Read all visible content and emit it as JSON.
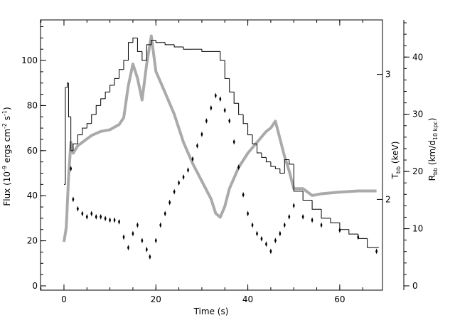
{
  "chart_data": {
    "type": "line",
    "xlabel": "Time (s)",
    "ylabel": [
      "Flux (10",
      "-9",
      " ergs cm",
      "-2",
      " s",
      "-1",
      ")"
    ],
    "y2label": [
      "T",
      "bb",
      " (keV)"
    ],
    "y3label": [
      "R",
      "bb",
      " (km/d",
      "10 kpc",
      ")"
    ],
    "xlim": [
      -5.1,
      69.3
    ],
    "xticks": [
      0,
      20,
      40,
      60
    ],
    "xminor_step": 5,
    "ylim": [
      -1.9,
      118
    ],
    "yticks": [
      0,
      20,
      40,
      60,
      80,
      100
    ],
    "yminor_step": 5,
    "y2lim": [
      1.49,
      3.58
    ],
    "y2ticks": [
      2,
      3
    ],
    "y2log": true,
    "y3lim": [
      -0.75,
      46.5
    ],
    "y3ticks": [
      0,
      10,
      20,
      30,
      40
    ],
    "y3minor_step": 2,
    "series": [
      {
        "name": "Flux",
        "type": "step",
        "color": "#000000",
        "bins": [
          0,
          0.3,
          0.7,
          1,
          1.5,
          2,
          3,
          4,
          5,
          6,
          7,
          8,
          9,
          10,
          11,
          12,
          13,
          14,
          15,
          16,
          17,
          18,
          19,
          20,
          22,
          24,
          26,
          28,
          30,
          32,
          34,
          35,
          36,
          37,
          38,
          39,
          40,
          41,
          42,
          43,
          44,
          45,
          46,
          47,
          48,
          49,
          50,
          52,
          54,
          56,
          58,
          60,
          62,
          64,
          66,
          68.5
        ],
        "values": [
          45,
          88,
          90,
          75,
          60,
          63,
          67,
          70,
          72,
          76,
          80,
          83,
          86,
          89,
          92,
          96,
          100,
          108,
          110,
          104,
          100,
          107,
          109,
          108,
          107,
          106,
          105,
          105,
          104,
          104,
          100,
          92,
          86,
          81,
          76,
          72,
          67,
          63,
          59,
          57,
          55,
          53,
          52,
          50,
          56,
          54,
          42,
          38,
          34,
          30,
          28,
          25,
          23,
          21,
          17
        ]
      },
      {
        "name": "Tbb",
        "type": "scatter",
        "axis": "y2",
        "color": "#000000",
        "x": [
          1.5,
          2,
          3,
          4,
          5,
          6,
          7,
          8,
          9,
          10,
          11,
          12,
          13,
          14,
          15,
          16,
          17,
          18,
          18.7,
          20,
          21,
          22,
          23,
          24,
          25,
          26,
          27,
          28,
          29,
          30,
          31,
          32,
          33,
          34,
          35,
          36,
          37,
          38,
          39,
          40,
          41,
          42,
          43,
          44,
          45,
          46,
          47,
          48,
          49,
          50,
          52,
          54,
          56,
          60,
          64,
          68
        ],
        "values": [
          2.21,
          2.0,
          1.94,
          1.91,
          1.89,
          1.91,
          1.89,
          1.89,
          1.88,
          1.87,
          1.87,
          1.86,
          1.77,
          1.71,
          1.79,
          1.84,
          1.75,
          1.7,
          1.66,
          1.75,
          1.84,
          1.91,
          1.98,
          2.05,
          2.11,
          2.15,
          2.2,
          2.28,
          2.38,
          2.47,
          2.58,
          2.69,
          2.8,
          2.77,
          2.67,
          2.58,
          2.41,
          2.22,
          2.03,
          1.91,
          1.84,
          1.79,
          1.76,
          1.73,
          1.69,
          1.75,
          1.79,
          1.84,
          1.89,
          1.96,
          1.89,
          1.87,
          1.84,
          1.81,
          1.77,
          1.69
        ]
      },
      {
        "name": "Rbb",
        "type": "band",
        "axis": "y3",
        "color": "#aaaaaa",
        "x": [
          0,
          0.5,
          1,
          1.5,
          2,
          3,
          4,
          6,
          8,
          10,
          12,
          13,
          14,
          15,
          16,
          17,
          18,
          19,
          20,
          22,
          24,
          26,
          28,
          30,
          32,
          33,
          34,
          35,
          36,
          38,
          40,
          42,
          44,
          45,
          46,
          47,
          48,
          49,
          50,
          52,
          54,
          56,
          60,
          64,
          68
        ],
        "values": [
          7.7,
          10.2,
          18.9,
          25.1,
          23.2,
          24.5,
          25.1,
          26.3,
          27.0,
          27.3,
          28.2,
          29.4,
          35.0,
          38.8,
          36.3,
          32.5,
          38.8,
          43.7,
          37.5,
          33.8,
          30.0,
          25.1,
          21.4,
          18.3,
          15.2,
          12.7,
          12.0,
          13.9,
          17.0,
          20.7,
          23.2,
          25.1,
          27.0,
          27.6,
          28.8,
          25.7,
          22.6,
          20.1,
          17.0,
          17.0,
          15.8,
          16.1,
          16.4,
          16.6,
          16.6
        ]
      }
    ]
  }
}
